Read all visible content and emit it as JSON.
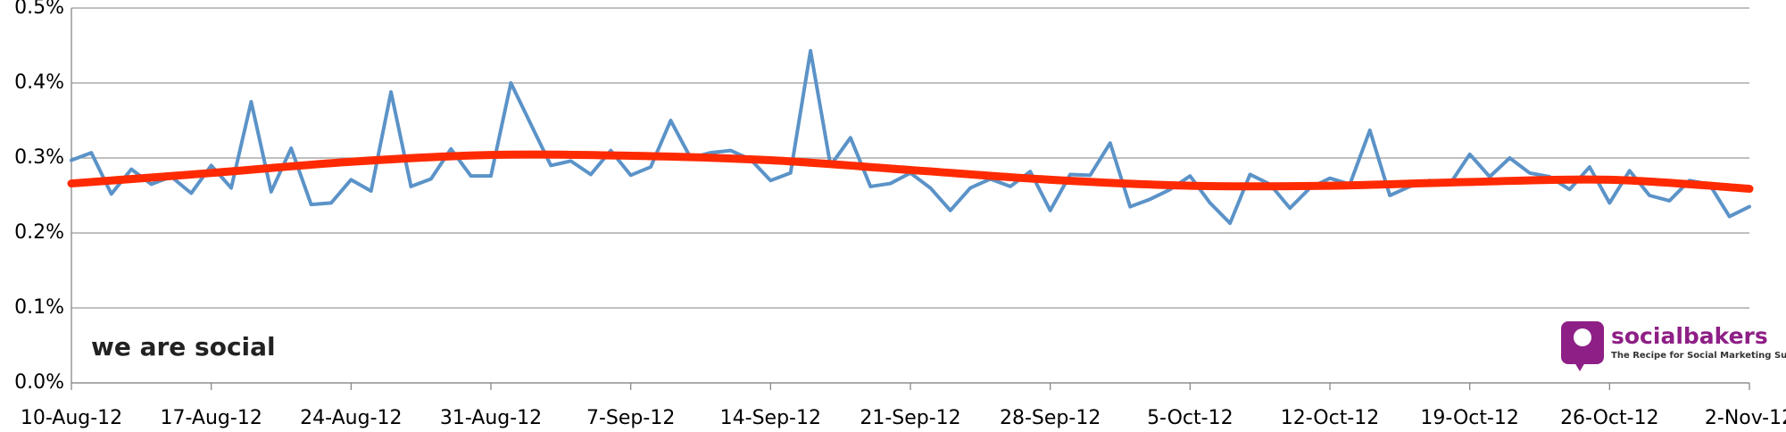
{
  "chart_data": {
    "type": "line",
    "x": [
      "2012-08-10",
      "2012-08-11",
      "2012-08-12",
      "2012-08-13",
      "2012-08-14",
      "2012-08-15",
      "2012-08-16",
      "2012-08-17",
      "2012-08-18",
      "2012-08-19",
      "2012-08-20",
      "2012-08-21",
      "2012-08-22",
      "2012-08-23",
      "2012-08-24",
      "2012-08-25",
      "2012-08-26",
      "2012-08-27",
      "2012-08-28",
      "2012-08-29",
      "2012-08-30",
      "2012-08-31",
      "2012-09-01",
      "2012-09-02",
      "2012-09-03",
      "2012-09-04",
      "2012-09-05",
      "2012-09-06",
      "2012-09-07",
      "2012-09-08",
      "2012-09-09",
      "2012-09-10",
      "2012-09-11",
      "2012-09-12",
      "2012-09-13",
      "2012-09-14",
      "2012-09-15",
      "2012-09-16",
      "2012-09-17",
      "2012-09-18",
      "2012-09-19",
      "2012-09-20",
      "2012-09-21",
      "2012-09-22",
      "2012-09-23",
      "2012-09-24",
      "2012-09-25",
      "2012-09-26",
      "2012-09-27",
      "2012-09-28",
      "2012-09-29",
      "2012-09-30",
      "2012-10-01",
      "2012-10-02",
      "2012-10-03",
      "2012-10-04",
      "2012-10-05",
      "2012-10-06",
      "2012-10-07",
      "2012-10-08",
      "2012-10-09",
      "2012-10-10",
      "2012-10-11",
      "2012-10-12",
      "2012-10-13",
      "2012-10-14",
      "2012-10-15",
      "2012-10-16",
      "2012-10-17",
      "2012-10-18",
      "2012-10-19",
      "2012-10-20",
      "2012-10-21",
      "2012-10-22",
      "2012-10-23",
      "2012-10-24",
      "2012-10-25",
      "2012-10-26",
      "2012-10-27",
      "2012-10-28",
      "2012-10-29",
      "2012-10-30",
      "2012-10-31",
      "2012-11-01",
      "2012-11-02"
    ],
    "series": [
      {
        "color": "#5b93c8",
        "values": [
          0.297,
          0.307,
          0.252,
          0.285,
          0.265,
          0.275,
          0.253,
          0.29,
          0.26,
          0.375,
          0.255,
          0.313,
          0.238,
          0.24,
          0.271,
          0.256,
          0.388,
          0.262,
          0.272,
          0.312,
          0.276,
          0.276,
          0.4,
          0.345,
          0.29,
          0.296,
          0.278,
          0.31,
          0.277,
          0.288,
          0.35,
          0.3,
          0.307,
          0.31,
          0.298,
          0.27,
          0.28,
          0.443,
          0.29,
          0.327,
          0.262,
          0.266,
          0.28,
          0.26,
          0.23,
          0.26,
          0.272,
          0.262,
          0.282,
          0.23,
          0.278,
          0.277,
          0.32,
          0.235,
          0.245,
          0.258,
          0.276,
          0.24,
          0.213,
          0.278,
          0.265,
          0.233,
          0.26,
          0.273,
          0.265,
          0.337,
          0.25,
          0.262,
          0.27,
          0.265,
          0.305,
          0.275,
          0.3,
          0.28,
          0.275,
          0.258,
          0.288,
          0.24,
          0.283,
          0.25,
          0.243,
          0.27,
          0.265,
          0.222,
          0.235
        ]
      },
      {
        "color": "#ff2a00",
        "smooth": true,
        "x": [
          "2012-08-10",
          "2012-08-17",
          "2012-08-24",
          "2012-08-31",
          "2012-09-07",
          "2012-09-14",
          "2012-09-21",
          "2012-09-28",
          "2012-10-05",
          "2012-10-12",
          "2012-10-19",
          "2012-10-26",
          "2012-11-02"
        ],
        "values": [
          0.266,
          0.28,
          0.295,
          0.304,
          0.303,
          0.297,
          0.284,
          0.271,
          0.263,
          0.263,
          0.268,
          0.271,
          0.259
        ]
      }
    ],
    "xlim": [
      "2012-08-10",
      "2012-11-02"
    ],
    "xticks": [
      {
        "value": "2012-08-10",
        "label": "10-Aug-12"
      },
      {
        "value": "2012-08-17",
        "label": "17-Aug-12"
      },
      {
        "value": "2012-08-24",
        "label": "24-Aug-12"
      },
      {
        "value": "2012-08-31",
        "label": "31-Aug-12"
      },
      {
        "value": "2012-09-07",
        "label": "7-Sep-12"
      },
      {
        "value": "2012-09-14",
        "label": "14-Sep-12"
      },
      {
        "value": "2012-09-21",
        "label": "21-Sep-12"
      },
      {
        "value": "2012-09-28",
        "label": "28-Sep-12"
      },
      {
        "value": "2012-10-05",
        "label": "5-Oct-12"
      },
      {
        "value": "2012-10-12",
        "label": "12-Oct-12"
      },
      {
        "value": "2012-10-19",
        "label": "19-Oct-12"
      },
      {
        "value": "2012-10-26",
        "label": "26-Oct-12"
      },
      {
        "value": "2012-11-02",
        "label": "2-Nov-12"
      }
    ],
    "ylim": [
      0,
      0.5
    ],
    "yticks": [
      {
        "value": 0,
        "label": "0.0%"
      },
      {
        "value": 0.1,
        "label": "0.1%"
      },
      {
        "value": 0.2,
        "label": "0.2%"
      },
      {
        "value": 0.3,
        "label": "0.3%"
      },
      {
        "value": 0.4,
        "label": "0.4%"
      },
      {
        "value": 0.5,
        "label": "0.5%"
      }
    ],
    "grid": true,
    "annotations": [
      "we are social",
      "socialbakers",
      "The Recipe for Social Marketing Success"
    ]
  }
}
